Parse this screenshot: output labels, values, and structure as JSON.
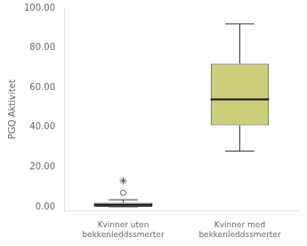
{
  "chart_data": {
    "type": "box",
    "ylabel": "PGQ Aktivitet",
    "categories": [
      "Kvinner uten\nbekkenleddssmerter",
      "Kvinner med\nbekkenleddssmerter"
    ],
    "values": [
      {
        "whislo": 0.0,
        "q1": 0.0,
        "median": 1.0,
        "q3": 2.0,
        "whishi": 3.5,
        "outliers": [
          7.0
        ],
        "extremes": [
          13.0
        ]
      },
      {
        "whislo": 28.0,
        "q1": 41.0,
        "median": 54.0,
        "q3": 72.0,
        "whishi": 92.0,
        "outliers": [],
        "extremes": []
      }
    ],
    "color": "#cccf7a",
    "ylim": [
      -2,
      100
    ],
    "yticks": [
      {
        "value": 0,
        "label": "0.00"
      },
      {
        "value": 20,
        "label": "20.00"
      },
      {
        "value": 40,
        "label": "40.00"
      },
      {
        "value": 60,
        "label": "60.00"
      },
      {
        "value": 80,
        "label": "80.00"
      },
      {
        "value": 100,
        "label": "100.00"
      }
    ],
    "grid": false
  }
}
